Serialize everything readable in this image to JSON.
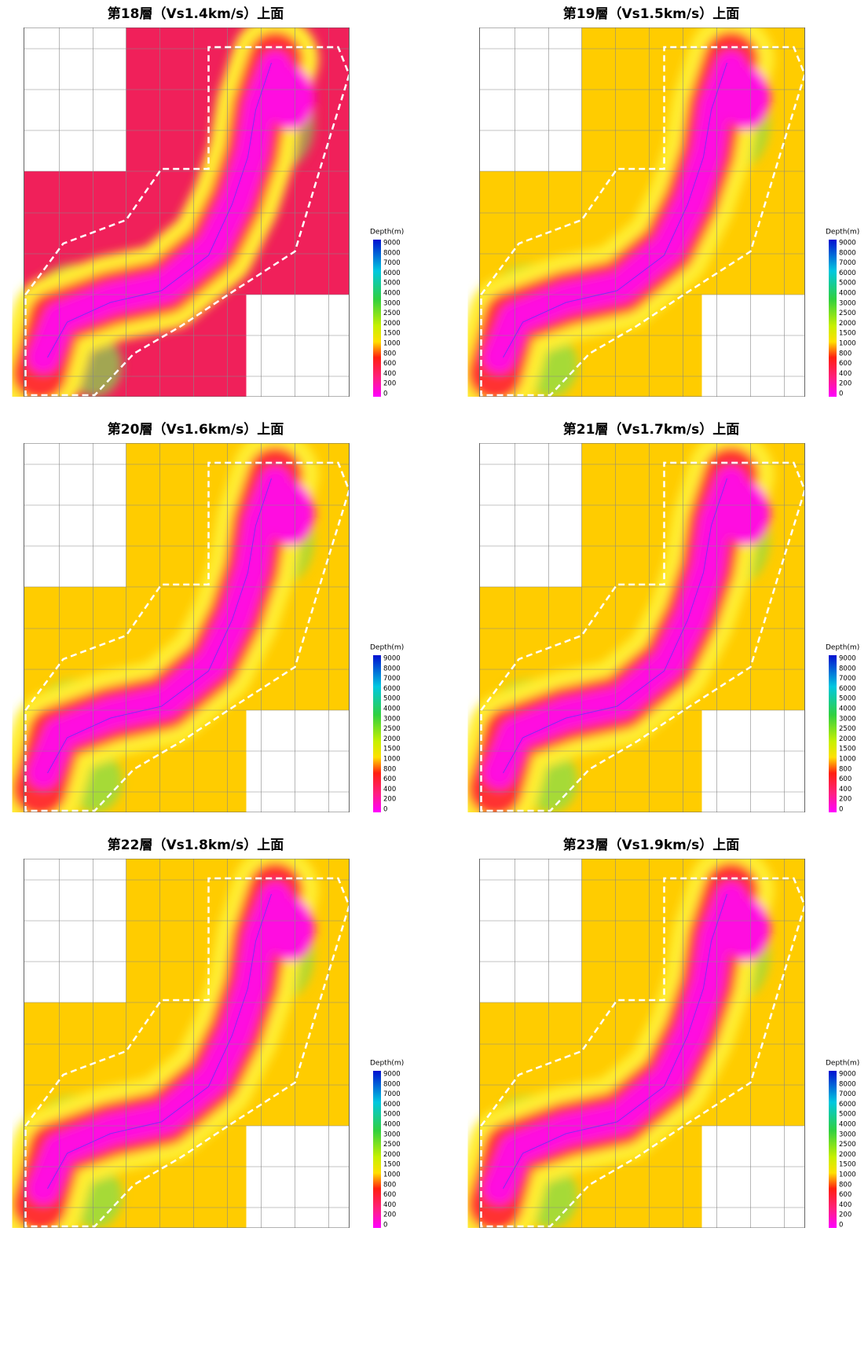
{
  "panels": [
    {
      "title": "第18層（Vs1.4km/s）上面"
    },
    {
      "title": "第19層（Vs1.5km/s）上面"
    },
    {
      "title": "第20層（Vs1.6km/s）上面"
    },
    {
      "title": "第21層（Vs1.7km/s）上面"
    },
    {
      "title": "第22層（Vs1.8km/s）上面"
    },
    {
      "title": "第23層（Vs1.9km/s）上面"
    }
  ],
  "colorbar": {
    "title": "Depth(m)",
    "ticks": [
      "9000",
      "8000",
      "7000",
      "6000",
      "5000",
      "4000",
      "3000",
      "2500",
      "2000",
      "1500",
      "1000",
      "800",
      "600",
      "400",
      "200",
      "0"
    ]
  }
}
